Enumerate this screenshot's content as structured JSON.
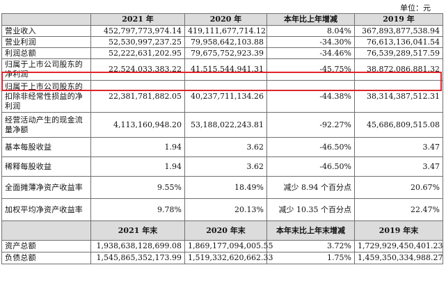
{
  "unit_label": "单位：元",
  "headers": [
    "",
    "2021 年",
    "2020 年",
    "本年比上年增减",
    "2019 年"
  ],
  "rows": [
    {
      "label": "营业收入",
      "v2021": "452,797,773,974.14",
      "v2020": "419,111,677,714.12",
      "change": "8.04%",
      "v2019": "367,893,877,538.94"
    },
    {
      "label": "营业利润",
      "v2021": "52,530,997,237.25",
      "v2020": "79,958,642,103.88",
      "change": "-34.30%",
      "v2019": "76,613,136,041.54"
    },
    {
      "label": "利润总额",
      "v2021": "52,222,631,202.95",
      "v2020": "79,675,752,923.39",
      "change": "-34.46%",
      "v2019": "76,539,289,517.59"
    },
    {
      "label": "归属于上市公司股东的净利润",
      "v2021": "22,524,033,383.22",
      "v2020": "41,515,544,941.31",
      "change": "-45.75%",
      "v2019": "38,872,086,881.32"
    },
    {
      "label": "归属于上市公司股东的扣除非经常性损益的净利润",
      "v2021": "22,381,781,882.05",
      "v2020": "40,237,711,134.26",
      "change": "-44.38%",
      "v2019": "38,314,387,512.31"
    },
    {
      "label": "经营活动产生的现金流量净额",
      "v2021": "4,113,160,948.20",
      "v2020": "53,188,022,243.81",
      "change": "-92.27%",
      "v2019": "45,686,809,515.08"
    },
    {
      "label": "基本每股收益",
      "v2021": "1.94",
      "v2020": "3.62",
      "change": "-46.50%",
      "v2019": "3.47"
    },
    {
      "label": "稀释每股收益",
      "v2021": "1.94",
      "v2020": "3.62",
      "change": "-46.50%",
      "v2019": "3.47"
    },
    {
      "label": "全面摊薄净资产收益率",
      "v2021": "9.55%",
      "v2020": "18.49%",
      "change": "减少 8.94 个百分点",
      "v2019": "20.67%"
    },
    {
      "label": "加权平均净资产收益率",
      "v2021": "9.78%",
      "v2020": "20.13%",
      "change": "减少 10.35 个百分点",
      "v2019": "22.47%"
    }
  ],
  "headers2": [
    "",
    "2021 年末",
    "2020 年末",
    "本年末比上年末增减",
    "2019 年末"
  ],
  "rows2": [
    {
      "label": "资产总额",
      "v2021": "1,938,638,128,699.08",
      "v2020": "1,869,177,094,005.55",
      "change": "3.72%",
      "v2019": "1,729,929,450,401.23"
    },
    {
      "label": "负债总额",
      "v2021": "1,545,865,352,173.99",
      "v2020": "1,519,332,620,662.33",
      "change": "1.75%",
      "v2019": "1,459,350,334,988.27"
    }
  ]
}
